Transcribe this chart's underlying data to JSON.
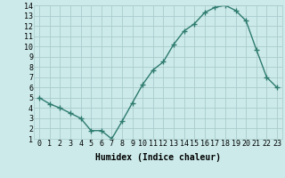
{
  "x": [
    0,
    1,
    2,
    3,
    4,
    5,
    6,
    7,
    8,
    9,
    10,
    11,
    12,
    13,
    14,
    15,
    16,
    17,
    18,
    19,
    20,
    21,
    22,
    23
  ],
  "y": [
    5.0,
    4.4,
    4.0,
    3.5,
    3.0,
    1.8,
    1.8,
    1.0,
    2.7,
    4.5,
    6.3,
    7.7,
    8.5,
    10.2,
    11.5,
    12.2,
    13.3,
    13.8,
    14.0,
    13.5,
    12.5,
    9.7,
    7.0,
    6.0
  ],
  "line_color": "#2e7b6e",
  "marker": "+",
  "marker_size": 4,
  "line_width": 1.0,
  "bg_color": "#cceaea",
  "grid_color": "#aacccc",
  "xlabel": "Humidex (Indice chaleur)",
  "xlim": [
    -0.5,
    23.5
  ],
  "ylim": [
    1,
    14
  ],
  "yticks": [
    1,
    2,
    3,
    4,
    5,
    6,
    7,
    8,
    9,
    10,
    11,
    12,
    13,
    14
  ],
  "xticks": [
    0,
    1,
    2,
    3,
    4,
    5,
    6,
    7,
    8,
    9,
    10,
    11,
    12,
    13,
    14,
    15,
    16,
    17,
    18,
    19,
    20,
    21,
    22,
    23
  ],
  "tick_fontsize": 6,
  "xlabel_fontsize": 7,
  "xlabel_bold": true
}
